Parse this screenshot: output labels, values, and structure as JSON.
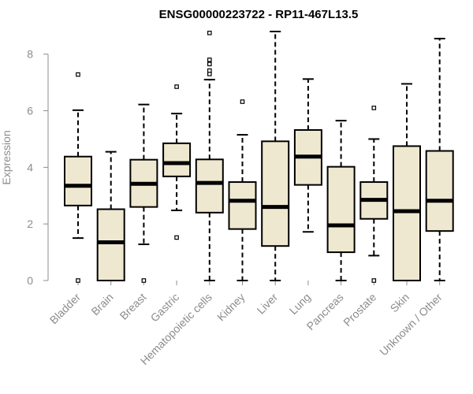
{
  "chart_data": {
    "type": "boxplot",
    "title": "ENSG00000223722 - RP11-467L13.5",
    "ylabel": "Expression",
    "ylim": [
      0,
      8.8
    ],
    "yticks": [
      0,
      2,
      4,
      6,
      8
    ],
    "box_fill": "#efe8d0",
    "box_stroke": "#000000",
    "categories": [
      "Bladder",
      "Brain",
      "Breast",
      "Gastric",
      "Hematopoietic cells",
      "Kidney",
      "Liver",
      "Lung",
      "Pancreas",
      "Prostate",
      "Skin",
      "Unknown / Other"
    ],
    "boxes": [
      {
        "name": "Bladder",
        "whisker_low": 1.5,
        "q1": 2.65,
        "median": 3.35,
        "q3": 4.38,
        "whisker_high": 6.02,
        "outliers": [
          0,
          7.28
        ]
      },
      {
        "name": "Brain",
        "whisker_low": 0,
        "q1": 0,
        "median": 1.35,
        "q3": 2.52,
        "whisker_high": 4.55,
        "outliers": []
      },
      {
        "name": "Breast",
        "whisker_low": 1.28,
        "q1": 2.6,
        "median": 3.42,
        "q3": 4.27,
        "whisker_high": 6.22,
        "outliers": [
          0
        ]
      },
      {
        "name": "Gastric",
        "whisker_low": 2.48,
        "q1": 3.68,
        "median": 4.15,
        "q3": 4.85,
        "whisker_high": 5.9,
        "outliers": [
          1.52,
          6.85
        ]
      },
      {
        "name": "Hematopoietic cells",
        "whisker_low": 0,
        "q1": 2.4,
        "median": 3.45,
        "q3": 4.28,
        "whisker_high": 7.1,
        "outliers": [
          7.3,
          7.42,
          7.65,
          7.8,
          8.75
        ]
      },
      {
        "name": "Kidney",
        "whisker_low": 0,
        "q1": 1.82,
        "median": 2.82,
        "q3": 3.48,
        "whisker_high": 5.15,
        "outliers": [
          6.32
        ]
      },
      {
        "name": "Liver",
        "whisker_low": 0,
        "q1": 1.22,
        "median": 2.6,
        "q3": 4.92,
        "whisker_high": 8.8,
        "outliers": []
      },
      {
        "name": "Lung",
        "whisker_low": 1.72,
        "q1": 3.38,
        "median": 4.38,
        "q3": 5.32,
        "whisker_high": 7.12,
        "outliers": []
      },
      {
        "name": "Pancreas",
        "whisker_low": 0,
        "q1": 1.0,
        "median": 1.95,
        "q3": 4.02,
        "whisker_high": 5.65,
        "outliers": []
      },
      {
        "name": "Prostate",
        "whisker_low": 0.88,
        "q1": 2.18,
        "median": 2.85,
        "q3": 3.48,
        "whisker_high": 5.0,
        "outliers": [
          0,
          6.1
        ]
      },
      {
        "name": "Skin",
        "whisker_low": 0,
        "q1": 0,
        "median": 2.45,
        "q3": 4.75,
        "whisker_high": 6.95,
        "outliers": []
      },
      {
        "name": "Unknown / Other",
        "whisker_low": 0,
        "q1": 1.75,
        "median": 2.82,
        "q3": 4.58,
        "whisker_high": 8.55,
        "outliers": []
      }
    ]
  }
}
